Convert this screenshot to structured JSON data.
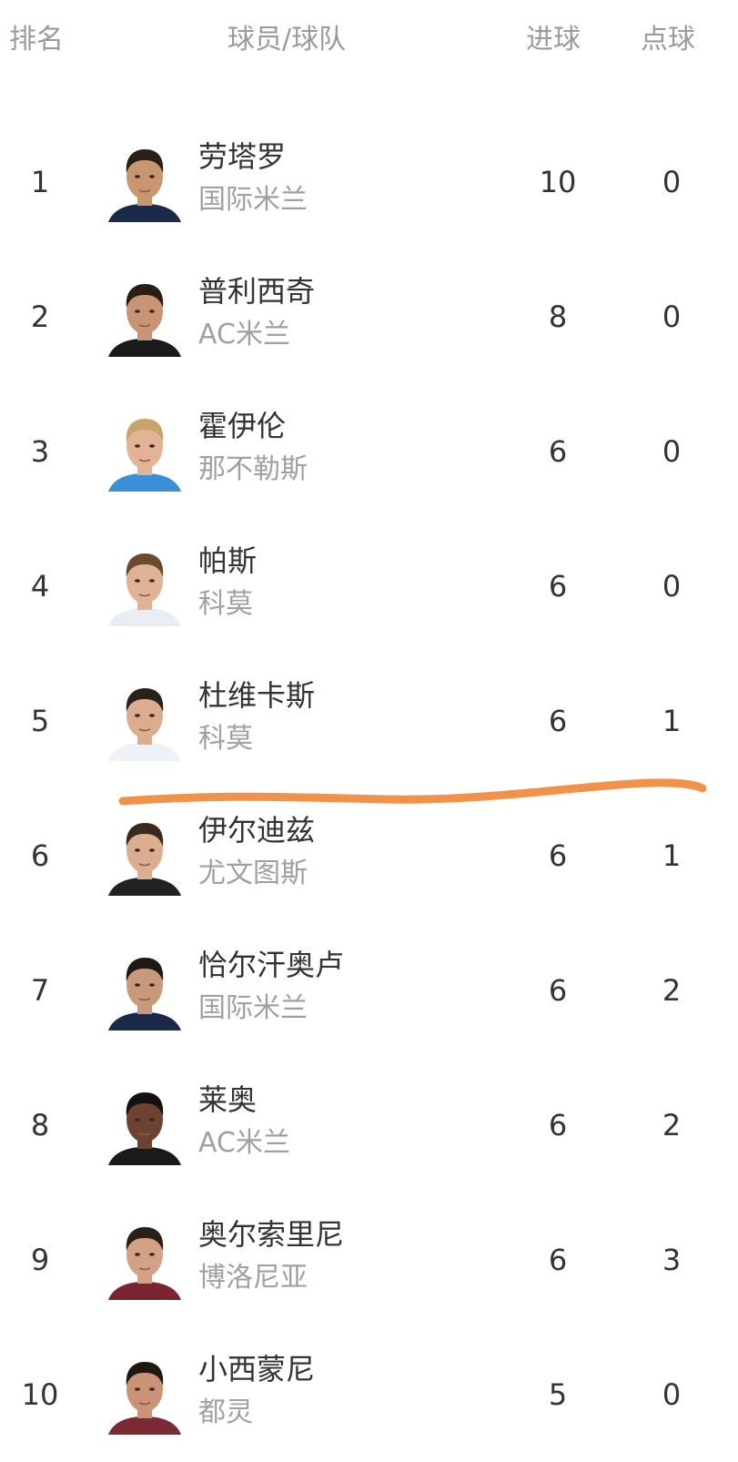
{
  "header": {
    "rank": "排名",
    "player_team": "球员/球队",
    "goals": "进球",
    "penalties": "点球"
  },
  "rows": [
    {
      "rank": "1",
      "name": "劳塔罗",
      "team": "国际米兰",
      "goals": "10",
      "penalties": "0",
      "jersey": "#1b2a4a",
      "hair": "#2a1f18",
      "skin": "#c9976f"
    },
    {
      "rank": "2",
      "name": "普利西奇",
      "team": "AC米兰",
      "goals": "8",
      "penalties": "0",
      "jersey": "#1a1a1a",
      "hair": "#2a1d15",
      "skin": "#c89474"
    },
    {
      "rank": "3",
      "name": "霍伊伦",
      "team": "那不勒斯",
      "goals": "6",
      "penalties": "0",
      "jersey": "#3a8fd6",
      "hair": "#c9a46a",
      "skin": "#e2b394"
    },
    {
      "rank": "4",
      "name": "帕斯",
      "team": "科莫",
      "goals": "6",
      "penalties": "0",
      "jersey": "#e9eef5",
      "hair": "#6b4a2e",
      "skin": "#e0b395"
    },
    {
      "rank": "5",
      "name": "杜维卡斯",
      "team": "科莫",
      "goals": "6",
      "penalties": "1",
      "jersey": "#eef1f5",
      "hair": "#2a211a",
      "skin": "#dcac8e"
    },
    {
      "rank": "6",
      "name": "伊尔迪兹",
      "team": "尤文图斯",
      "goals": "6",
      "penalties": "1",
      "jersey": "#222222",
      "hair": "#3a2a1e",
      "skin": "#dcae90"
    },
    {
      "rank": "7",
      "name": "恰尔汗奥卢",
      "team": "国际米兰",
      "goals": "6",
      "penalties": "2",
      "jersey": "#1b2a4a",
      "hair": "#1f1915",
      "skin": "#c99a7a"
    },
    {
      "rank": "8",
      "name": "莱奥",
      "team": "AC米兰",
      "goals": "6",
      "penalties": "2",
      "jersey": "#1a1a1a",
      "hair": "#15110e",
      "skin": "#6b4330"
    },
    {
      "rank": "9",
      "name": "奥尔索里尼",
      "team": "博洛尼亚",
      "goals": "6",
      "penalties": "3",
      "jersey": "#7a2430",
      "hair": "#2b2019",
      "skin": "#d3a184"
    },
    {
      "rank": "10",
      "name": "小西蒙尼",
      "team": "都灵",
      "goals": "5",
      "penalties": "0",
      "jersey": "#7b2a34",
      "hair": "#1f1813",
      "skin": "#c99375"
    }
  ],
  "annotation": {
    "color": "#f0924a"
  }
}
